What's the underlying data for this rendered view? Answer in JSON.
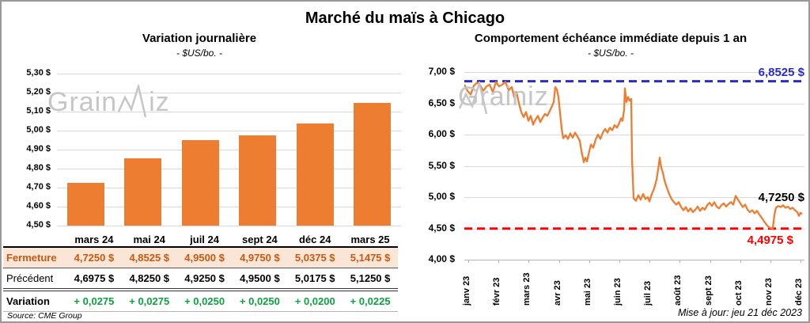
{
  "page": {
    "title": "Marché du maïs à Chicago",
    "source": "Source: CME Group",
    "updated": "Mise à jour: jeu 21 déc 2023",
    "watermark": {
      "part1": "Grain",
      "part2": "iz"
    }
  },
  "chart_data": [
    {
      "type": "bar",
      "title": "Variation journalière",
      "subtitle": "- $US/bo. -",
      "categories": [
        "mars 24",
        "mai 24",
        "juil 24",
        "sept 24",
        "déc 24",
        "mars 25"
      ],
      "values": [
        4.725,
        4.8525,
        4.95,
        4.975,
        5.0375,
        5.1475
      ],
      "ylim": [
        4.5,
        5.3
      ],
      "y_ticks": [
        "5,30 $",
        "5,20 $",
        "5,10 $",
        "5,00 $",
        "4,90 $",
        "4,80 $",
        "4,70 $",
        "4,60 $",
        "4,50 $"
      ],
      "bar_color": "#ED7D31",
      "grid": true,
      "legend": "none"
    },
    {
      "type": "line",
      "title": "Comportement échéance immédiate depuis 1 an",
      "subtitle": "- $US/bo. -",
      "x_labels": [
        "janv 23",
        "févr 23",
        "mars 23",
        "avr 23",
        "mai 23",
        "juin 23",
        "juil 23",
        "août 23",
        "sept 23",
        "oct 23",
        "nov 23",
        "déc 23"
      ],
      "ylim": [
        4.0,
        7.0
      ],
      "y_ticks": [
        "7,00 $",
        "6,50 $",
        "6,00 $",
        "5,50 $",
        "5,00 $",
        "4,50 $",
        "4,00 $"
      ],
      "line_color": "#ED7D31",
      "grid": true,
      "legend": "none",
      "high_line": {
        "value": 6.8525,
        "label": "6,8525 $",
        "color": "#2B2BC4"
      },
      "low_line": {
        "value": 4.4975,
        "label": "4,4975 $",
        "color": "#FE0000"
      },
      "last_point": {
        "value": 4.725,
        "label": "4,7250 $",
        "color": "#000000"
      },
      "series": [
        [
          0,
          6.8
        ],
        [
          4,
          6.7
        ],
        [
          8,
          6.64
        ],
        [
          12,
          6.78
        ],
        [
          16,
          6.83
        ],
        [
          20,
          6.79
        ],
        [
          24,
          6.7
        ],
        [
          28,
          6.77
        ],
        [
          32,
          6.8
        ],
        [
          36,
          6.68
        ],
        [
          40,
          6.84
        ],
        [
          44,
          6.77
        ],
        [
          48,
          6.8
        ],
        [
          52,
          6.84
        ],
        [
          56,
          6.71
        ],
        [
          60,
          6.76
        ],
        [
          63,
          6.6
        ],
        [
          66,
          6.68
        ],
        [
          69,
          6.5
        ],
        [
          72,
          6.36
        ],
        [
          75,
          6.28
        ],
        [
          78,
          6.36
        ],
        [
          81,
          6.22
        ],
        [
          84,
          6.3
        ],
        [
          87,
          6.16
        ],
        [
          90,
          6.24
        ],
        [
          93,
          6.3
        ],
        [
          96,
          6.2
        ],
        [
          99,
          6.27
        ],
        [
          102,
          6.33
        ],
        [
          105,
          6.3
        ],
        [
          108,
          6.38
        ],
        [
          111,
          6.46
        ],
        [
          113,
          6.52
        ],
        [
          115,
          6.76
        ],
        [
          117,
          6.72
        ],
        [
          119,
          6.6
        ],
        [
          121,
          6.35
        ],
        [
          123,
          6.1
        ],
        [
          125,
          5.94
        ],
        [
          128,
          5.99
        ],
        [
          131,
          5.93
        ],
        [
          134,
          6.02
        ],
        [
          137,
          5.95
        ],
        [
          140,
          6.03
        ],
        [
          143,
          5.97
        ],
        [
          146,
          5.9
        ],
        [
          148,
          5.74
        ],
        [
          151,
          5.56
        ],
        [
          153,
          5.63
        ],
        [
          155,
          5.57
        ],
        [
          157,
          5.68
        ],
        [
          160,
          5.84
        ],
        [
          163,
          5.79
        ],
        [
          166,
          5.92
        ],
        [
          169,
          6.0
        ],
        [
          172,
          5.93
        ],
        [
          175,
          6.03
        ],
        [
          178,
          6.09
        ],
        [
          181,
          6.03
        ],
        [
          184,
          6.11
        ],
        [
          187,
          6.07
        ],
        [
          190,
          6.15
        ],
        [
          193,
          6.11
        ],
        [
          196,
          6.19
        ],
        [
          198,
          6.26
        ],
        [
          200,
          6.22
        ],
        [
          202,
          6.4
        ],
        [
          203,
          6.74
        ],
        [
          205,
          6.52
        ],
        [
          207,
          6.6
        ],
        [
          209,
          6.54
        ],
        [
          211,
          6.57
        ],
        [
          212,
          5.62
        ],
        [
          214,
          4.98
        ],
        [
          217,
          4.94
        ],
        [
          220,
          5.03
        ],
        [
          223,
          4.96
        ],
        [
          226,
          5.05
        ],
        [
          229,
          4.97
        ],
        [
          232,
          5.0
        ],
        [
          234,
          4.93
        ],
        [
          237,
          5.05
        ],
        [
          240,
          5.14
        ],
        [
          243,
          5.28
        ],
        [
          245,
          5.44
        ],
        [
          247,
          5.63
        ],
        [
          249,
          5.47
        ],
        [
          251,
          5.39
        ],
        [
          253,
          5.27
        ],
        [
          256,
          5.15
        ],
        [
          259,
          5.05
        ],
        [
          262,
          4.97
        ],
        [
          265,
          4.92
        ],
        [
          268,
          4.88
        ],
        [
          271,
          4.92
        ],
        [
          274,
          4.84
        ],
        [
          277,
          4.79
        ],
        [
          280,
          4.84
        ],
        [
          283,
          4.77
        ],
        [
          286,
          4.82
        ],
        [
          289,
          4.76
        ],
        [
          292,
          4.8
        ],
        [
          295,
          4.85
        ],
        [
          298,
          4.78
        ],
        [
          301,
          4.83
        ],
        [
          304,
          4.8
        ],
        [
          307,
          4.87
        ],
        [
          310,
          4.91
        ],
        [
          313,
          4.86
        ],
        [
          316,
          4.92
        ],
        [
          319,
          4.85
        ],
        [
          322,
          4.82
        ],
        [
          325,
          4.87
        ],
        [
          328,
          4.9
        ],
        [
          331,
          4.85
        ],
        [
          334,
          4.89
        ],
        [
          337,
          4.92
        ],
        [
          340,
          4.88
        ],
        [
          343,
          5.02
        ],
        [
          346,
          4.96
        ],
        [
          349,
          4.9
        ],
        [
          352,
          4.84
        ],
        [
          355,
          4.88
        ],
        [
          358,
          4.8
        ],
        [
          361,
          4.76
        ],
        [
          364,
          4.79
        ],
        [
          367,
          4.74
        ],
        [
          370,
          4.78
        ],
        [
          373,
          4.72
        ],
        [
          376,
          4.67
        ],
        [
          379,
          4.61
        ],
        [
          382,
          4.56
        ],
        [
          385,
          4.52
        ],
        [
          388,
          4.5
        ],
        [
          390,
          4.5
        ],
        [
          392,
          4.72
        ],
        [
          394,
          4.83
        ],
        [
          397,
          4.86
        ],
        [
          400,
          4.84
        ],
        [
          403,
          4.87
        ],
        [
          406,
          4.83
        ],
        [
          409,
          4.85
        ],
        [
          412,
          4.81
        ],
        [
          415,
          4.83
        ],
        [
          418,
          4.79
        ],
        [
          421,
          4.76
        ],
        [
          423,
          4.7
        ],
        [
          425,
          4.75
        ],
        [
          427,
          4.73
        ]
      ]
    }
  ],
  "table": {
    "col_headers": [
      "",
      "mars 24",
      "mai 24",
      "juil 24",
      "sept 24",
      "déc 24",
      "mars 25"
    ],
    "rows": [
      {
        "label": "Fermeture",
        "style": "fermeture",
        "values": [
          "4,7250 $",
          "4,8525 $",
          "4,9500 $",
          "4,9750 $",
          "5,0375 $",
          "5,1475 $"
        ]
      },
      {
        "label": "Précédent",
        "style": "precedent",
        "values": [
          "4,6975 $",
          "4,8250 $",
          "4,9250 $",
          "4,9500 $",
          "5,0175 $",
          "5,1250 $"
        ]
      },
      {
        "label": "Variation",
        "style": "variation",
        "values": [
          "+ 0,0275",
          "+ 0,0275",
          "+ 0,0250",
          "+ 0,0250",
          "+ 0,0200",
          "+ 0,0225"
        ]
      }
    ],
    "colors": {
      "fermeture_bg": "#FBE5D6",
      "fermeture_text": "#C55A11",
      "variation_text": "#0DA23F"
    }
  }
}
